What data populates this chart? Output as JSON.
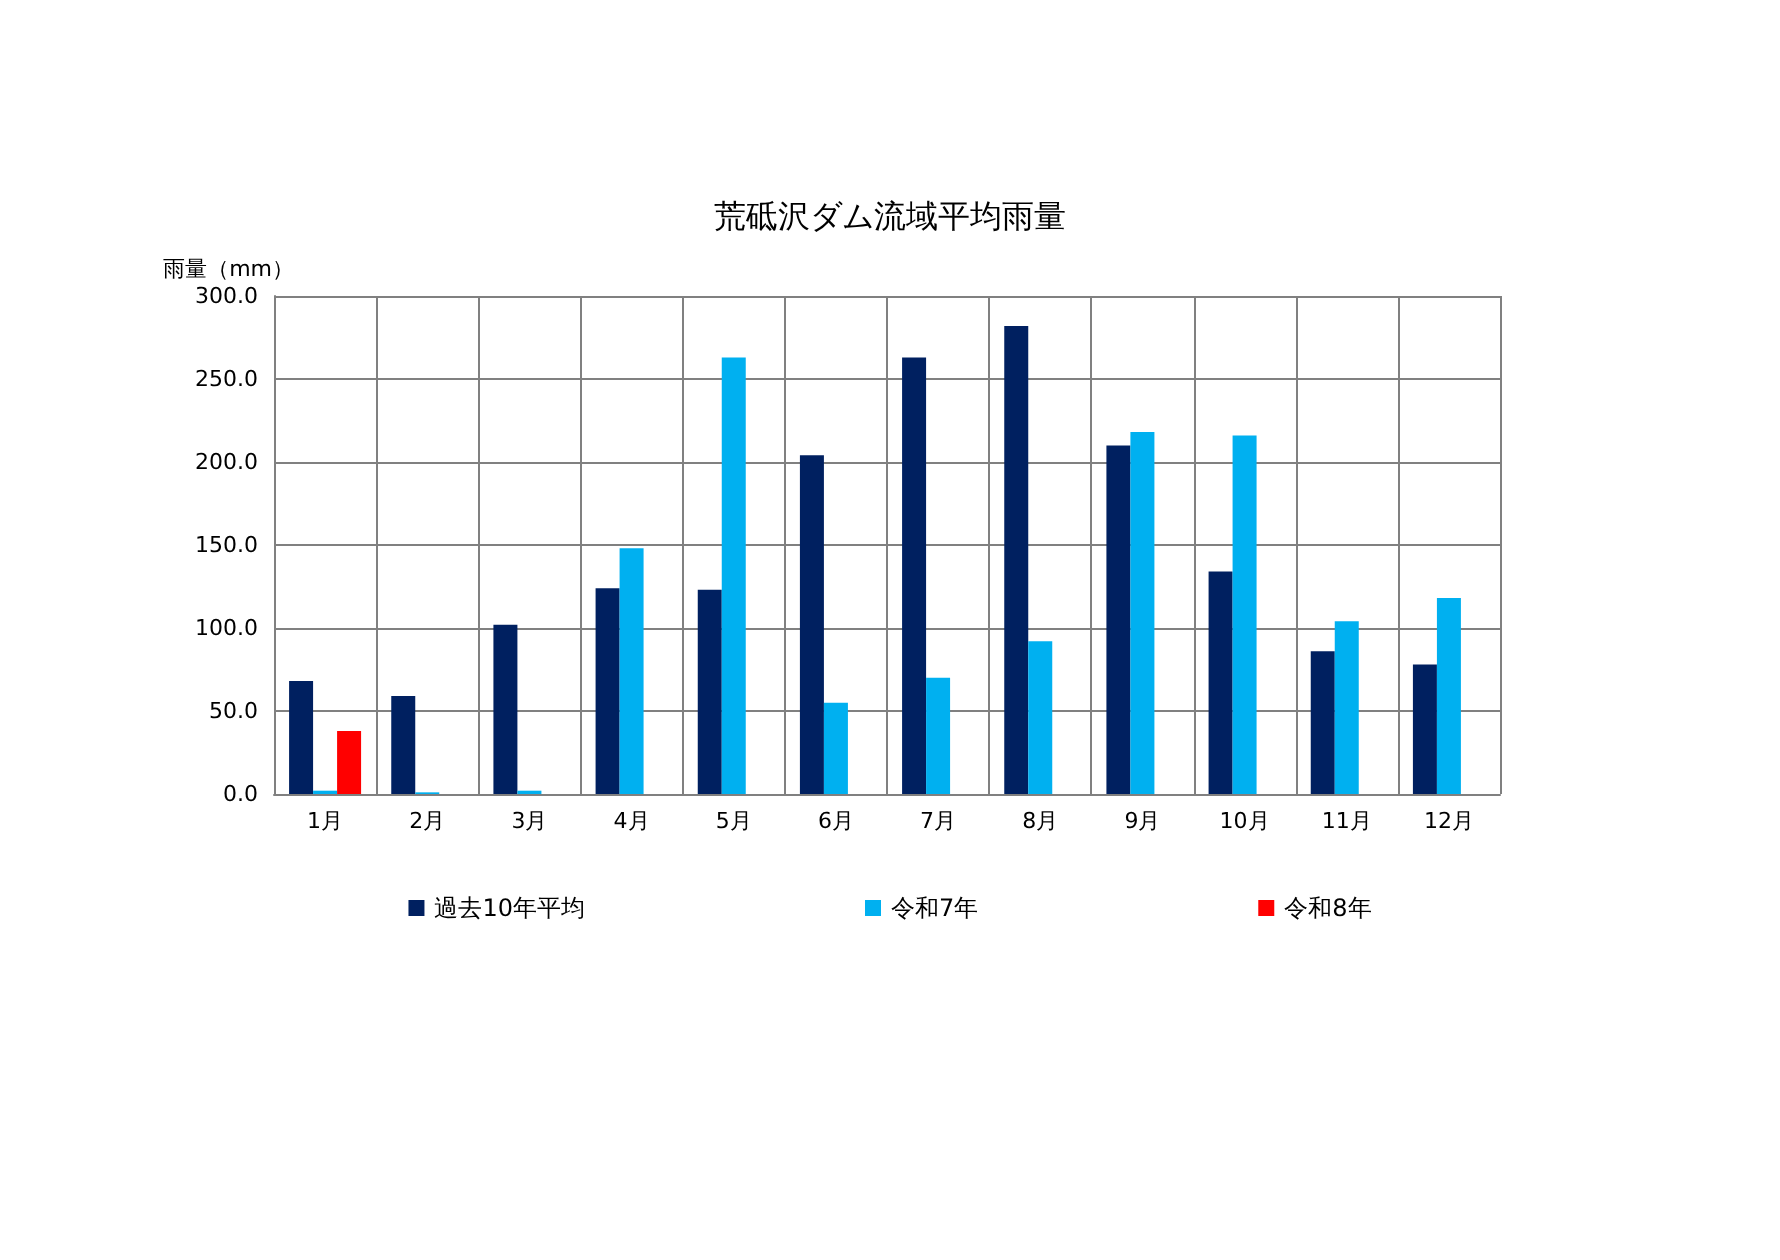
{
  "chart_data": {
    "type": "bar",
    "title": "荒砥沢ダム流域平均雨量",
    "ylabel": "雨量（mm）",
    "categories": [
      "1月",
      "2月",
      "3月",
      "4月",
      "5月",
      "6月",
      "7月",
      "8月",
      "9月",
      "10月",
      "11月",
      "12月"
    ],
    "series": [
      {
        "name": "過去10年平均",
        "color": "#002060",
        "values": [
          68,
          59,
          102,
          124,
          123,
          204,
          263,
          282,
          210,
          134,
          86,
          78
        ]
      },
      {
        "name": "令和7年",
        "color": "#00b0f0",
        "values": [
          2,
          1,
          2,
          148,
          263,
          55,
          70,
          92,
          218,
          216,
          104,
          118
        ]
      },
      {
        "name": "令和8年",
        "color": "#ff0000",
        "values": [
          38,
          null,
          null,
          null,
          null,
          null,
          null,
          null,
          null,
          null,
          null,
          null
        ]
      }
    ],
    "ylim": [
      0,
      300
    ],
    "yticks": [
      {
        "value": 0,
        "label": "0.0"
      },
      {
        "value": 50,
        "label": "50.0"
      },
      {
        "value": 100,
        "label": "100.0"
      },
      {
        "value": 150,
        "label": "150.0"
      },
      {
        "value": 200,
        "label": "200.0"
      },
      {
        "value": 250,
        "label": "250.0"
      },
      {
        "value": 300,
        "label": "300.0"
      }
    ],
    "grid": true,
    "legend": "bottom"
  }
}
